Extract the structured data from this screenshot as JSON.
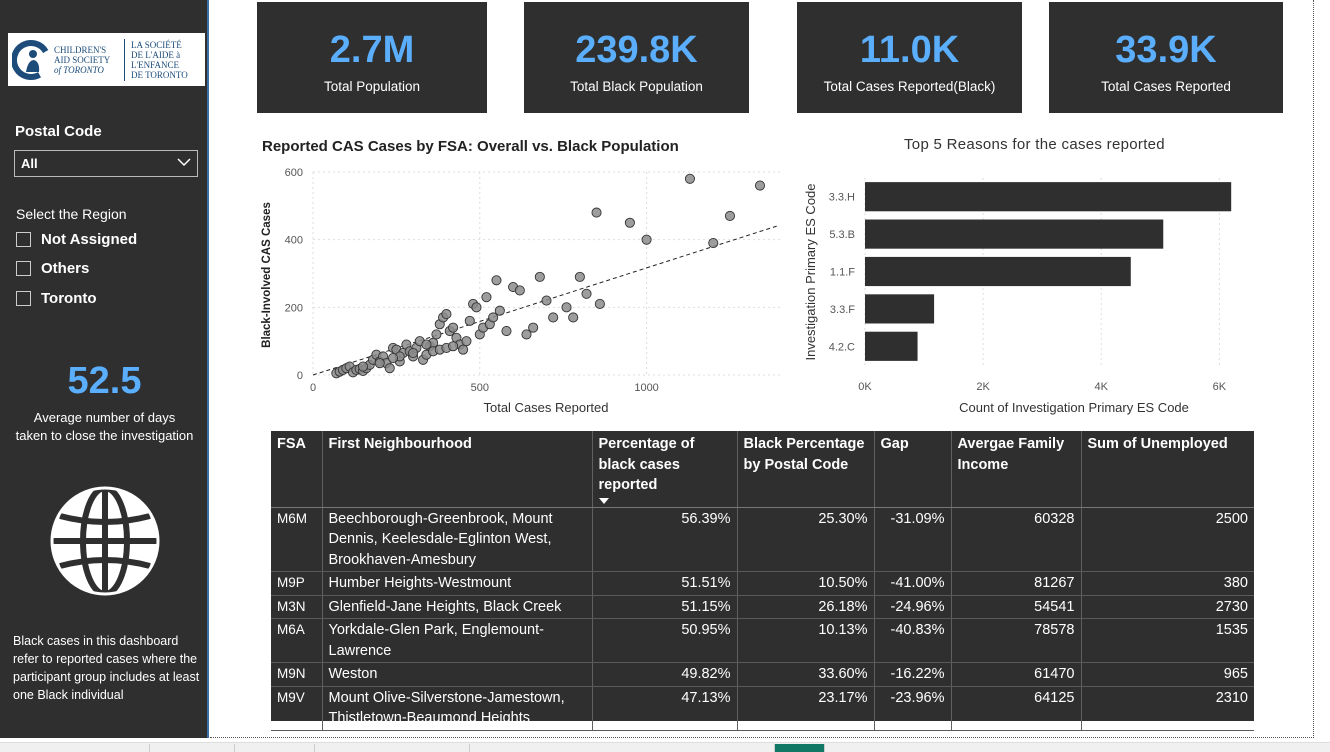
{
  "sidebar": {
    "logo": {
      "en_line1": "CHILDREN'S",
      "en_line2": "AID SOCIETY",
      "en_line3": "of TORONTO",
      "fr_line1": "LA SOCIÉTÉ",
      "fr_line2": "DE L'AIDE à",
      "fr_line3": "L'ENFANCE",
      "fr_line4": "DE TORONTO"
    },
    "postal_label": "Postal Code",
    "postal_value": "All",
    "region_label": "Select the Region",
    "regions": [
      "Not Assigned",
      "Others",
      "Toronto"
    ],
    "avg_days_value": "52.5",
    "avg_days_label_line1": "Average number of days",
    "avg_days_label_line2": "taken to close the investigation",
    "note": "Black cases in this dashboard refer to reported cases where the participant group includes at least one Black individual"
  },
  "kpis": [
    {
      "value": "2.7M",
      "label": "Total Population"
    },
    {
      "value": "239.8K",
      "label": "Total Black Population"
    },
    {
      "value": "11.0K",
      "label": "Total Cases Reported(Black)"
    },
    {
      "value": "33.9K",
      "label": "Total Cases Reported"
    }
  ],
  "colors": {
    "panel": "#2f2f2f",
    "accent": "#5aaefc",
    "bar": "#2f2f2f",
    "point": "#8c8c8c"
  },
  "chart_data": [
    {
      "type": "scatter",
      "title": "Reported CAS Cases by FSA: Overall vs. Black Population",
      "xlabel": "Total Cases Reported",
      "ylabel": "Black-Involved CAS Cases",
      "xlim": [
        0,
        1400
      ],
      "ylim": [
        0,
        600
      ],
      "xticks": [
        "0",
        "500",
        "1000"
      ],
      "yticks": [
        "0",
        "200",
        "400",
        "600"
      ],
      "grid": true,
      "trendline": {
        "x": [
          0,
          1390
        ],
        "y": [
          0,
          440
        ]
      },
      "points": [
        [
          70,
          5
        ],
        [
          80,
          10
        ],
        [
          90,
          15
        ],
        [
          100,
          20
        ],
        [
          110,
          25
        ],
        [
          120,
          8
        ],
        [
          130,
          15
        ],
        [
          140,
          18
        ],
        [
          150,
          12
        ],
        [
          160,
          20
        ],
        [
          170,
          30
        ],
        [
          180,
          45
        ],
        [
          190,
          60
        ],
        [
          200,
          40
        ],
        [
          210,
          55
        ],
        [
          220,
          35
        ],
        [
          230,
          20
        ],
        [
          240,
          80
        ],
        [
          250,
          75
        ],
        [
          260,
          40
        ],
        [
          270,
          65
        ],
        [
          280,
          90
        ],
        [
          290,
          70
        ],
        [
          300,
          55
        ],
        [
          310,
          80
        ],
        [
          320,
          100
        ],
        [
          330,
          45
        ],
        [
          340,
          60
        ],
        [
          350,
          85
        ],
        [
          360,
          95
        ],
        [
          370,
          120
        ],
        [
          380,
          150
        ],
        [
          390,
          170
        ],
        [
          400,
          180
        ],
        [
          410,
          130
        ],
        [
          420,
          140
        ],
        [
          430,
          110
        ],
        [
          440,
          90
        ],
        [
          450,
          75
        ],
        [
          460,
          100
        ],
        [
          470,
          160
        ],
        [
          480,
          210
        ],
        [
          490,
          200
        ],
        [
          500,
          120
        ],
        [
          510,
          140
        ],
        [
          520,
          230
        ],
        [
          530,
          150
        ],
        [
          540,
          170
        ],
        [
          550,
          280
        ],
        [
          560,
          190
        ],
        [
          580,
          130
        ],
        [
          600,
          260
        ],
        [
          620,
          250
        ],
        [
          640,
          120
        ],
        [
          660,
          140
        ],
        [
          680,
          290
        ],
        [
          700,
          220
        ],
        [
          720,
          170
        ],
        [
          760,
          200
        ],
        [
          780,
          170
        ],
        [
          800,
          290
        ],
        [
          820,
          240
        ],
        [
          850,
          480
        ],
        [
          860,
          210
        ],
        [
          950,
          450
        ],
        [
          1000,
          400
        ],
        [
          1130,
          580
        ],
        [
          1200,
          390
        ],
        [
          1250,
          470
        ],
        [
          1340,
          560
        ],
        [
          340,
          90
        ],
        [
          360,
          70
        ],
        [
          380,
          75
        ],
        [
          400,
          80
        ],
        [
          420,
          85
        ],
        [
          300,
          65
        ],
        [
          260,
          55
        ],
        [
          240,
          50
        ],
        [
          200,
          35
        ],
        [
          150,
          25
        ]
      ]
    },
    {
      "type": "bar",
      "title": "Top 5 Reasons for the cases reported",
      "xlabel": "Count of Investigation Primary ES Code",
      "ylabel": "Investigation Primary ES Code",
      "categories": [
        "3.3.H",
        "5.3.B",
        "1.1.F",
        "3.3.F",
        "4.2.C"
      ],
      "values": [
        6200,
        5050,
        4500,
        1170,
        890
      ],
      "xlim": [
        0,
        6400
      ],
      "xticks": [
        "0K",
        "2K",
        "4K",
        "6K"
      ],
      "grid": true
    }
  ],
  "table": {
    "headers": {
      "fsa": "FSA",
      "neighbourhood": "First Neighbourhood",
      "pct_black_cases": "Percentage of black cases reported",
      "black_pct_postal": "Black Percentage by Postal Code",
      "gap": "Gap",
      "income": "Avergae Family Income",
      "unemployed": "Sum of Unemployed"
    },
    "rows": [
      {
        "fsa": "M6M",
        "neighbourhood": "Beechborough-Greenbrook, Mount Dennis, Keelesdale-Eglinton West, Brookhaven-Amesbury",
        "pct": "56.39%",
        "black_pct": "25.30%",
        "gap": "-31.09%",
        "income": "60328",
        "unemployed": "2500"
      },
      {
        "fsa": "M9P",
        "neighbourhood": "Humber Heights-Westmount",
        "pct": "51.51%",
        "black_pct": "10.50%",
        "gap": "-41.00%",
        "income": "81267",
        "unemployed": "380"
      },
      {
        "fsa": "M3N",
        "neighbourhood": "Glenfield-Jane Heights, Black Creek",
        "pct": "51.15%",
        "black_pct": "26.18%",
        "gap": "-24.96%",
        "income": "54541",
        "unemployed": "2730"
      },
      {
        "fsa": "M6A",
        "neighbourhood": "Yorkdale-Glen Park, Englemount-Lawrence",
        "pct": "50.95%",
        "black_pct": "10.13%",
        "gap": "-40.83%",
        "income": "78578",
        "unemployed": "1535"
      },
      {
        "fsa": "M9N",
        "neighbourhood": "Weston",
        "pct": "49.82%",
        "black_pct": "33.60%",
        "gap": "-16.22%",
        "income": "61470",
        "unemployed": "965"
      },
      {
        "fsa": "M9V",
        "neighbourhood": "Mount Olive-Silverstone-Jamestown, Thistletown-Beaumond Heights",
        "pct": "47.13%",
        "black_pct": "23.17%",
        "gap": "-23.96%",
        "income": "64125",
        "unemployed": "2310"
      }
    ]
  }
}
